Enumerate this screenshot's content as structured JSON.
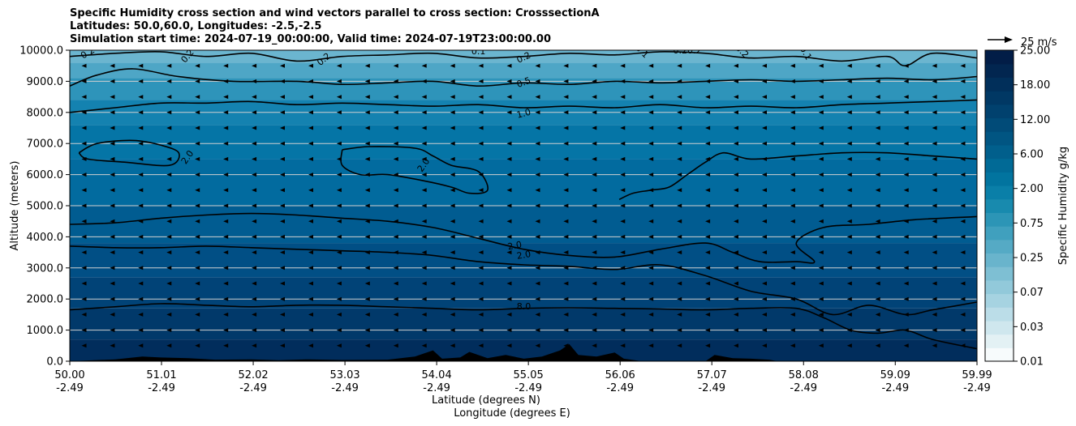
{
  "chart_data": {
    "type": "contour",
    "title_lines": [
      "Specific Humidity cross section and wind vectors parallel to cross section: CrosssectionA",
      "Latitudes: 50.0,60.0, Longitudes: -2.5,-2.5",
      "Simulation start time: 2024-07-19_00:00:00, Valid time: 2024-07-19T23:00:00.00"
    ],
    "xlabel_lat": "Latitude (degrees N)",
    "xlabel_lon": "Longitude (degrees E)",
    "ylabel": "Altitude (meters)",
    "ylim": [
      0,
      10000
    ],
    "xlim": [
      50.0,
      59.99
    ],
    "x_ticks": [
      {
        "lat": "50.00",
        "lon": "-2.49",
        "value": 50.0
      },
      {
        "lat": "51.01",
        "lon": "-2.49",
        "value": 51.01
      },
      {
        "lat": "52.02",
        "lon": "-2.49",
        "value": 52.02
      },
      {
        "lat": "53.03",
        "lon": "-2.49",
        "value": 53.03
      },
      {
        "lat": "54.04",
        "lon": "-2.49",
        "value": 54.04
      },
      {
        "lat": "55.05",
        "lon": "-2.49",
        "value": 55.05
      },
      {
        "lat": "56.06",
        "lon": "-2.49",
        "value": 56.06
      },
      {
        "lat": "57.07",
        "lon": "-2.49",
        "value": 57.07
      },
      {
        "lat": "58.08",
        "lon": "-2.49",
        "value": 58.08
      },
      {
        "lat": "59.09",
        "lon": "-2.49",
        "value": 59.09
      },
      {
        "lat": "59.99",
        "lon": "-2.49",
        "value": 59.99
      }
    ],
    "y_ticks": [
      "0.0",
      "1000.0",
      "2000.0",
      "3000.0",
      "4000.0",
      "5000.0",
      "6000.0",
      "7000.0",
      "8000.0",
      "9000.0",
      "10000.0"
    ],
    "grid": "horizontal",
    "colorbar": {
      "label": "Specific Humidity g/kg",
      "ticks": [
        "0.01",
        "0.03",
        "0.07",
        "0.25",
        "0.75",
        "2.00",
        "6.00",
        "12.00",
        "18.00",
        "25.00"
      ],
      "colors": [
        "#f7fbfc",
        "#e3f1f4",
        "#cfe7ee",
        "#bbdde8",
        "#a6d3e1",
        "#92c9da",
        "#7ebfd3",
        "#69b4cc",
        "#55aac5",
        "#40a0be",
        "#2c95b6",
        "#188aae",
        "#0a7fa8",
        "#02749f",
        "#016a96",
        "#015f8c",
        "#015582",
        "#014b78",
        "#01416e",
        "#013864",
        "#012f5a",
        "#022650",
        "#021d47"
      ]
    },
    "quiver_key": {
      "label": "25 m/s",
      "speed": 25
    },
    "background_bands": [
      {
        "from": 0,
        "to": 700,
        "color": "#012d5c"
      },
      {
        "from": 700,
        "to": 1700,
        "color": "#01396a"
      },
      {
        "from": 1700,
        "to": 2700,
        "color": "#014377"
      },
      {
        "from": 2700,
        "to": 3800,
        "color": "#014f85"
      },
      {
        "from": 3800,
        "to": 5000,
        "color": "#015c91"
      },
      {
        "from": 5000,
        "to": 6500,
        "color": "#026b9f"
      },
      {
        "from": 6500,
        "to": 7600,
        "color": "#0575a6"
      },
      {
        "from": 7600,
        "to": 8400,
        "color": "#1482b0"
      },
      {
        "from": 8400,
        "to": 9100,
        "color": "#2e94ba"
      },
      {
        "from": 9100,
        "to": 9600,
        "color": "#4ea6c6"
      },
      {
        "from": 9600,
        "to": 10000,
        "color": "#6bb5cf"
      }
    ],
    "contours": [
      {
        "level": "8.0",
        "points": [
          [
            50.0,
            1650
          ],
          [
            50.5,
            1750
          ],
          [
            51.0,
            1850
          ],
          [
            51.5,
            1800
          ],
          [
            52.0,
            1750
          ],
          [
            52.5,
            1800
          ],
          [
            53.0,
            1800
          ],
          [
            53.5,
            1750
          ],
          [
            54.0,
            1700
          ],
          [
            54.5,
            1650
          ],
          [
            55.0,
            1700
          ],
          [
            55.5,
            1720
          ],
          [
            56.0,
            1700
          ],
          [
            56.5,
            1680
          ],
          [
            57.0,
            1650
          ],
          [
            57.5,
            1700
          ],
          [
            58.0,
            1700
          ],
          [
            58.3,
            1400
          ],
          [
            58.6,
            1000
          ],
          [
            58.9,
            900
          ],
          [
            59.2,
            1000
          ],
          [
            59.5,
            700
          ],
          [
            59.99,
            400
          ]
        ]
      },
      {
        "level": "2.0",
        "points": [
          [
            50.0,
            3700
          ],
          [
            50.5,
            3650
          ],
          [
            51.0,
            3650
          ],
          [
            51.5,
            3700
          ],
          [
            52.0,
            3650
          ],
          [
            52.5,
            3600
          ],
          [
            53.0,
            3550
          ],
          [
            53.5,
            3500
          ],
          [
            54.0,
            3400
          ],
          [
            54.5,
            3200
          ],
          [
            55.0,
            3100
          ],
          [
            55.5,
            3050
          ],
          [
            56.0,
            2950
          ],
          [
            56.5,
            3100
          ],
          [
            57.0,
            2750
          ],
          [
            57.5,
            2250
          ],
          [
            58.0,
            2000
          ],
          [
            58.4,
            1500
          ],
          [
            58.8,
            1800
          ],
          [
            59.2,
            1500
          ],
          [
            59.5,
            1650
          ],
          [
            59.99,
            1900
          ]
        ]
      },
      {
        "level": "2.0",
        "points": [
          [
            50.0,
            4400
          ],
          [
            50.5,
            4450
          ],
          [
            51.0,
            4600
          ],
          [
            51.5,
            4700
          ],
          [
            52.0,
            4750
          ],
          [
            52.5,
            4700
          ],
          [
            53.0,
            4600
          ],
          [
            53.5,
            4500
          ],
          [
            54.0,
            4300
          ],
          [
            54.5,
            3950
          ],
          [
            55.0,
            3600
          ],
          [
            55.5,
            3400
          ],
          [
            56.0,
            3350
          ],
          [
            56.5,
            3600
          ],
          [
            57.0,
            3800
          ],
          [
            57.3,
            3500
          ],
          [
            57.6,
            3200
          ],
          [
            58.0,
            3200
          ],
          [
            58.2,
            3200
          ],
          [
            58.0,
            3800
          ],
          [
            58.3,
            4300
          ],
          [
            58.8,
            4400
          ],
          [
            59.3,
            4550
          ],
          [
            59.99,
            4650
          ]
        ]
      },
      {
        "level": "2.0",
        "points": [
          [
            56.05,
            5200
          ],
          [
            56.2,
            5400
          ],
          [
            56.4,
            5500
          ],
          [
            56.6,
            5600
          ],
          [
            56.8,
            6000
          ],
          [
            57.0,
            6400
          ],
          [
            57.2,
            6700
          ],
          [
            57.5,
            6500
          ],
          [
            58.0,
            6600
          ],
          [
            58.5,
            6700
          ],
          [
            59.0,
            6700
          ],
          [
            59.5,
            6600
          ],
          [
            59.99,
            6500
          ]
        ]
      },
      {
        "level": "2.0",
        "points": [
          [
            50.1,
            6700
          ],
          [
            50.3,
            7000
          ],
          [
            50.7,
            7100
          ],
          [
            51.0,
            6950
          ],
          [
            51.2,
            6700
          ],
          [
            51.1,
            6300
          ],
          [
            50.6,
            6400
          ],
          [
            50.2,
            6500
          ],
          [
            50.1,
            6700
          ]
        ]
      },
      {
        "level": "2.0",
        "points": [
          [
            53.0,
            6800
          ],
          [
            53.3,
            6900
          ],
          [
            53.8,
            6850
          ],
          [
            54.0,
            6600
          ],
          [
            54.2,
            6300
          ],
          [
            54.5,
            6100
          ],
          [
            54.6,
            5500
          ],
          [
            54.4,
            5400
          ],
          [
            54.2,
            5600
          ],
          [
            53.9,
            5800
          ],
          [
            53.5,
            6000
          ],
          [
            53.2,
            6000
          ],
          [
            53.0,
            6300
          ],
          [
            53.0,
            6800
          ]
        ]
      },
      {
        "level": "1.0",
        "points": [
          [
            50.0,
            8000
          ],
          [
            50.5,
            8150
          ],
          [
            51.0,
            8300
          ],
          [
            51.5,
            8300
          ],
          [
            52.0,
            8350
          ],
          [
            52.5,
            8250
          ],
          [
            53.0,
            8300
          ],
          [
            53.5,
            8250
          ],
          [
            54.0,
            8200
          ],
          [
            54.5,
            8250
          ],
          [
            55.0,
            8150
          ],
          [
            55.5,
            8200
          ],
          [
            56.0,
            8150
          ],
          [
            56.5,
            8250
          ],
          [
            57.0,
            8150
          ],
          [
            57.5,
            8200
          ],
          [
            58.0,
            8150
          ],
          [
            58.5,
            8250
          ],
          [
            59.0,
            8300
          ],
          [
            59.5,
            8350
          ],
          [
            59.99,
            8400
          ]
        ]
      },
      {
        "level": "0.5",
        "points": [
          [
            50.0,
            8850
          ],
          [
            50.3,
            9200
          ],
          [
            50.7,
            9400
          ],
          [
            51.2,
            9150
          ],
          [
            51.8,
            9000
          ],
          [
            52.5,
            9000
          ],
          [
            53.0,
            8900
          ],
          [
            53.5,
            8950
          ],
          [
            54.0,
            9000
          ],
          [
            54.5,
            8850
          ],
          [
            55.0,
            8950
          ],
          [
            55.5,
            8900
          ],
          [
            56.0,
            9000
          ],
          [
            56.5,
            8950
          ],
          [
            57.0,
            9000
          ],
          [
            57.5,
            9050
          ],
          [
            58.0,
            9000
          ],
          [
            58.5,
            9050
          ],
          [
            59.0,
            9100
          ],
          [
            59.5,
            9050
          ],
          [
            59.99,
            9150
          ]
        ]
      },
      {
        "level": "0.2",
        "points": [
          [
            50.0,
            9800
          ],
          [
            50.5,
            9900
          ],
          [
            51.0,
            9950
          ],
          [
            51.5,
            9800
          ],
          [
            52.0,
            9900
          ],
          [
            52.5,
            9650
          ],
          [
            53.0,
            9800
          ],
          [
            53.5,
            9850
          ],
          [
            54.0,
            9900
          ],
          [
            54.5,
            9750
          ],
          [
            55.0,
            9800
          ],
          [
            55.5,
            9900
          ],
          [
            56.0,
            9850
          ],
          [
            56.5,
            9950
          ],
          [
            57.0,
            9900
          ],
          [
            57.5,
            9750
          ],
          [
            58.0,
            9800
          ],
          [
            58.5,
            9650
          ],
          [
            59.0,
            9800
          ],
          [
            59.2,
            9500
          ],
          [
            59.5,
            9900
          ],
          [
            59.99,
            9750
          ]
        ]
      }
    ],
    "contour_labels": [
      {
        "text": "0.2",
        "x": 50.2,
        "y": 9900,
        "rot": -30
      },
      {
        "text": "0.2",
        "x": 51.3,
        "y": 9800,
        "rot": -50
      },
      {
        "text": "0.2",
        "x": 52.8,
        "y": 9700,
        "rot": -40
      },
      {
        "text": "0.1",
        "x": 54.5,
        "y": 9950,
        "rot": 0
      },
      {
        "text": "0.2",
        "x": 55.0,
        "y": 9750,
        "rot": -25
      },
      {
        "text": "0.1",
        "x": 56.3,
        "y": 9950,
        "rot": 45
      },
      {
        "text": "0.20.2",
        "x": 56.8,
        "y": 9980,
        "rot": 0
      },
      {
        "text": "0.2",
        "x": 57.4,
        "y": 9950,
        "rot": 45
      },
      {
        "text": "0.1",
        "x": 58.1,
        "y": 9900,
        "rot": 60
      },
      {
        "text": "0.5",
        "x": 55.0,
        "y": 8950,
        "rot": -20
      },
      {
        "text": "1.0",
        "x": 55.0,
        "y": 7950,
        "rot": -15
      },
      {
        "text": "2.0",
        "x": 51.3,
        "y": 6550,
        "rot": -55
      },
      {
        "text": "2.0",
        "x": 53.9,
        "y": 6300,
        "rot": -55
      },
      {
        "text": "2.0",
        "x": 54.9,
        "y": 3700,
        "rot": -10
      },
      {
        "text": "2.0",
        "x": 55.0,
        "y": 3400,
        "rot": -10
      },
      {
        "text": "8.0",
        "x": 55.0,
        "y": 1750,
        "rot": 0
      }
    ],
    "terrain": [
      [
        50.0,
        0
      ],
      [
        50.5,
        60
      ],
      [
        50.8,
        150
      ],
      [
        51.0,
        120
      ],
      [
        51.3,
        100
      ],
      [
        51.6,
        50
      ],
      [
        52.0,
        60
      ],
      [
        52.3,
        30
      ],
      [
        52.6,
        60
      ],
      [
        53.0,
        40
      ],
      [
        53.5,
        50
      ],
      [
        53.8,
        150
      ],
      [
        54.0,
        350
      ],
      [
        54.1,
        80
      ],
      [
        54.3,
        120
      ],
      [
        54.4,
        300
      ],
      [
        54.6,
        100
      ],
      [
        54.8,
        200
      ],
      [
        55.0,
        80
      ],
      [
        55.2,
        150
      ],
      [
        55.4,
        350
      ],
      [
        55.5,
        550
      ],
      [
        55.6,
        200
      ],
      [
        55.8,
        150
      ],
      [
        56.0,
        280
      ],
      [
        56.1,
        80
      ],
      [
        56.3,
        0
      ],
      [
        57.0,
        0
      ],
      [
        57.1,
        200
      ],
      [
        57.3,
        100
      ],
      [
        57.5,
        80
      ],
      [
        57.7,
        50
      ],
      [
        57.8,
        0
      ],
      [
        59.99,
        0
      ]
    ],
    "wind_arrow_length_px": 6
  }
}
